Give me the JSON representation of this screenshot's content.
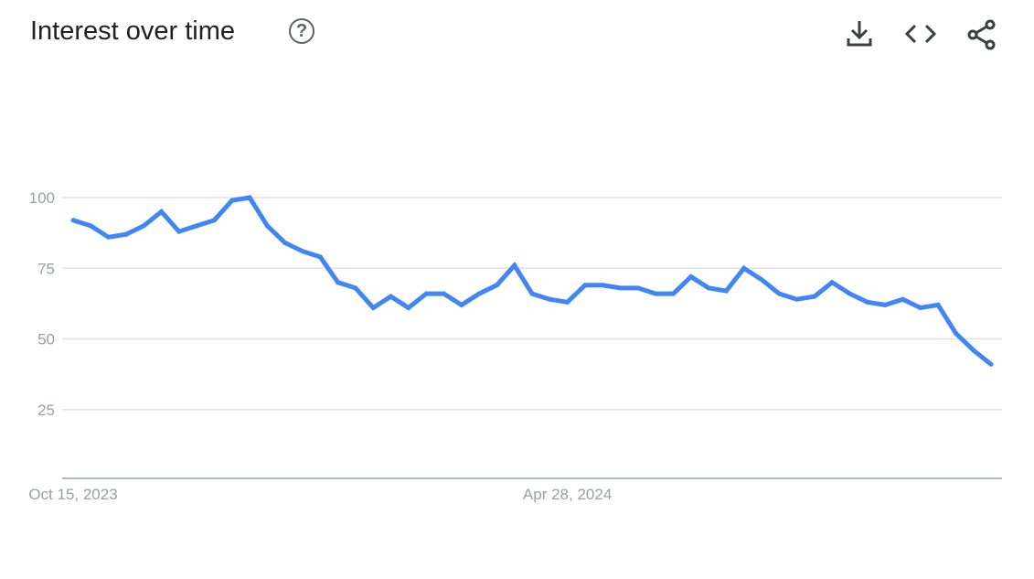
{
  "header": {
    "title": "Interest over time",
    "help_icon": "help-circle-icon",
    "actions": [
      "download-icon",
      "embed-code-icon",
      "share-icon"
    ]
  },
  "chart_data": {
    "type": "line",
    "title": "Interest over time",
    "line_color": "#4285f4",
    "grid": true,
    "ylim": [
      0,
      100
    ],
    "y_ticks": [
      "25",
      "50",
      "75",
      "100"
    ],
    "x_tick_labels": [
      "Oct 15, 2023",
      "Apr 28, 2024"
    ],
    "x": [
      "2023-10-15",
      "2023-10-22",
      "2023-10-29",
      "2023-11-05",
      "2023-11-12",
      "2023-11-19",
      "2023-11-26",
      "2023-12-03",
      "2023-12-10",
      "2023-12-17",
      "2023-12-24",
      "2023-12-31",
      "2024-01-07",
      "2024-01-14",
      "2024-01-21",
      "2024-01-28",
      "2024-02-04",
      "2024-02-11",
      "2024-02-18",
      "2024-02-25",
      "2024-03-03",
      "2024-03-10",
      "2024-03-17",
      "2024-03-24",
      "2024-03-31",
      "2024-04-07",
      "2024-04-14",
      "2024-04-21",
      "2024-04-28",
      "2024-05-05",
      "2024-05-12",
      "2024-05-19",
      "2024-05-26",
      "2024-06-02",
      "2024-06-09",
      "2024-06-16",
      "2024-06-23",
      "2024-06-30",
      "2024-07-07",
      "2024-07-14",
      "2024-07-21",
      "2024-07-28",
      "2024-08-04",
      "2024-08-11",
      "2024-08-18",
      "2024-08-25",
      "2024-09-01",
      "2024-09-08",
      "2024-09-15",
      "2024-09-22",
      "2024-09-29",
      "2024-10-06",
      "2024-10-13"
    ],
    "values": [
      92,
      90,
      86,
      87,
      90,
      95,
      88,
      90,
      92,
      99,
      100,
      90,
      84,
      81,
      79,
      70,
      68,
      61,
      65,
      61,
      66,
      66,
      62,
      66,
      69,
      76,
      66,
      64,
      63,
      69,
      69,
      68,
      68,
      66,
      66,
      72,
      68,
      67,
      75,
      71,
      66,
      64,
      65,
      70,
      66,
      63,
      62,
      64,
      61,
      62,
      52,
      46,
      41
    ]
  }
}
